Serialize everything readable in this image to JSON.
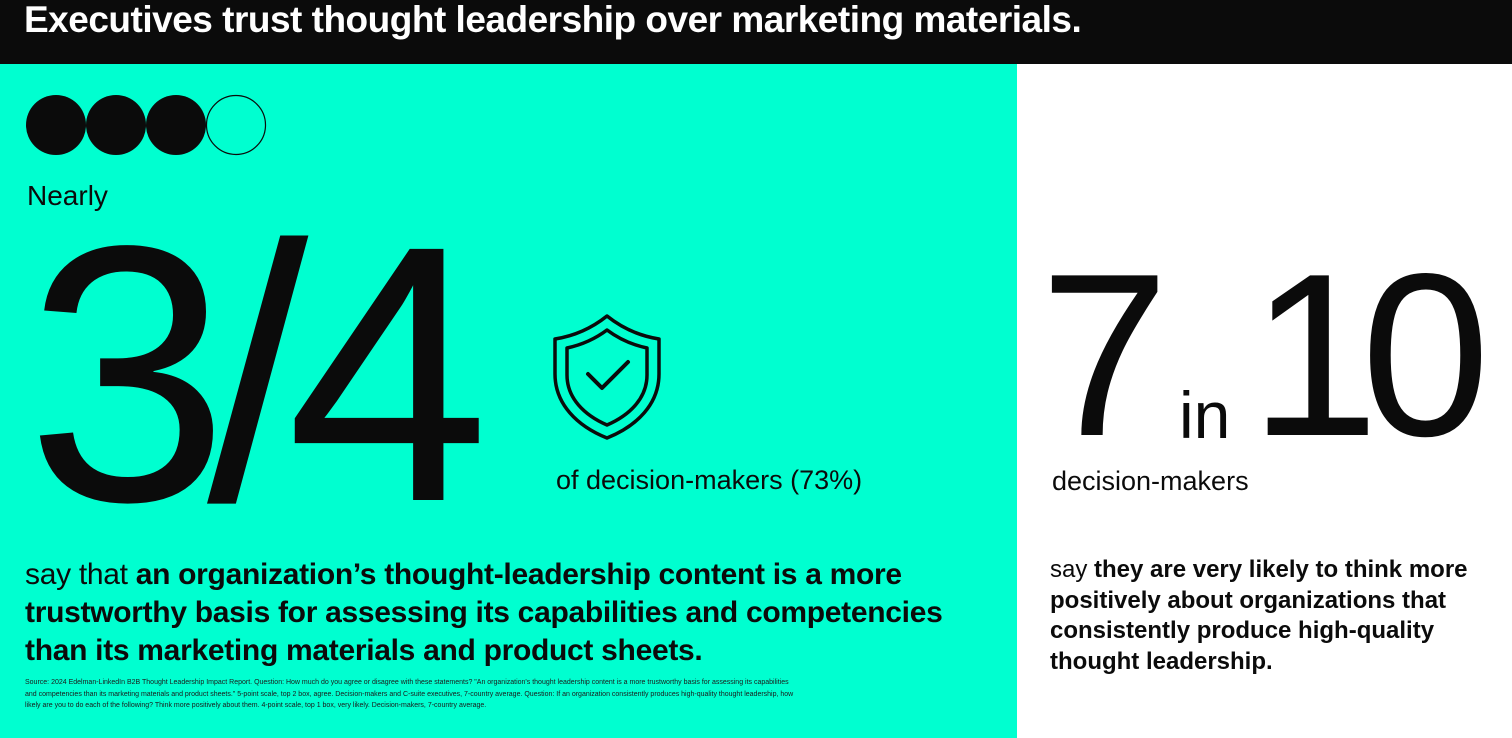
{
  "header": {
    "title": "Executives trust thought leadership over marketing materials."
  },
  "left": {
    "icon": "three-of-four-circles-icon",
    "qualifier": "Nearly",
    "fraction": "3/4",
    "shield_icon": "shield-check-icon",
    "subject": "of decision-makers (73%)",
    "statement_lead": "say that ",
    "statement_bold": "an organization’s thought-leadership content is a more trustworthy basis for assessing its capabilities and competencies than its marketing materials and product sheets.",
    "source": "Source: 2024 Edelman-LinkedIn B2B Thought Leadership Impact Report. Question: How much do you agree or disagree with these statements? \"An organization's thought leadership content is a more trustworthy basis for assessing its capabilities and competencies than its marketing materials and product sheets.\" 5-point scale, top 2 box, agree. Decision-makers and C-suite executives, 7-country average. Question: If an organization consistently produces high-quality thought leadership, how likely are you to do each of the following? Think more positively about them. 4-point scale, top 1 box, very likely. Decision-makers, 7-country average."
  },
  "right": {
    "numerator": "7",
    "connector": "in",
    "denominator": "10",
    "subject": "decision-makers",
    "statement_lead": "say ",
    "statement_bold": "they are very likely to think more positively about organizations that consistently produce high-quality thought leadership."
  },
  "colors": {
    "accent": "#00ffd0",
    "dark": "#0b0b0b",
    "light": "#ffffff"
  }
}
